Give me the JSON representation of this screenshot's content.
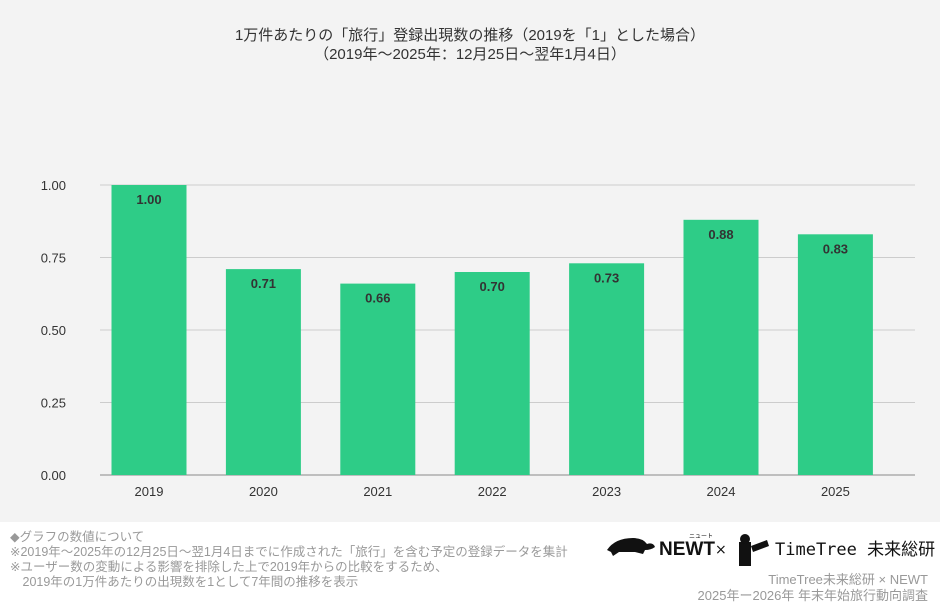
{
  "chart_data": {
    "type": "bar",
    "title": "1万件あたりの「旅行」登録出現数の推移（2019を「1」とした場合）",
    "subtitle": "（2019年～2025年：12月25日～翌年1月4日）",
    "categories": [
      "2019",
      "2020",
      "2021",
      "2022",
      "2023",
      "2024",
      "2025"
    ],
    "values": [
      1.0,
      0.71,
      0.66,
      0.7,
      0.73,
      0.88,
      0.83
    ],
    "data_labels": [
      "1.00",
      "0.71",
      "0.66",
      "0.70",
      "0.73",
      "0.88",
      "0.83"
    ],
    "yticks": [
      "0.00",
      "0.25",
      "0.50",
      "0.75",
      "1.00"
    ],
    "ylim": [
      0,
      1.0
    ],
    "grid": true,
    "bar_color": "#2ecc87",
    "xlabel": "",
    "ylabel": ""
  },
  "notes": [
    "◆グラフの数値について",
    "※2019年～2025年の12月25日～翌1月4日までに作成された「旅行」を含む予定の登録データを集計",
    "※ユーザー数の変動による影響を排除した上で2019年からの比較をするため、",
    "　2019年の1万件あたりの出現数を1として7年間の推移を表示"
  ],
  "logos": {
    "newt": "NEWT",
    "newt_kana": "ニュート",
    "times": "×",
    "timetree": "TimeTree 未来総研"
  },
  "credit": [
    "TimeTree未来総研 × NEWT",
    "2025年ー2026年 年末年始旅行動向調査"
  ]
}
